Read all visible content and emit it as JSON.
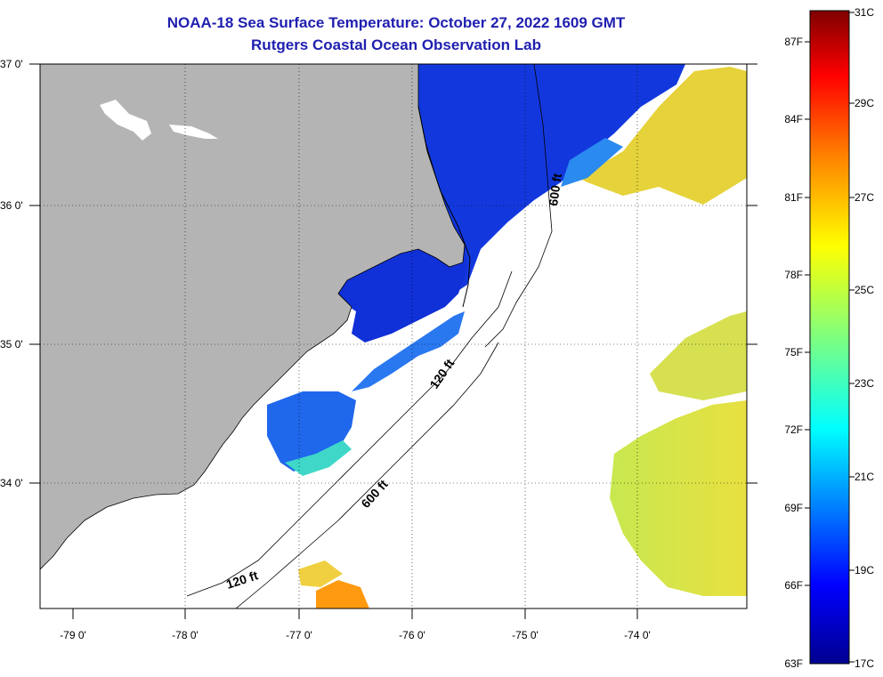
{
  "title": {
    "line1": "NOAA-18 Sea Surface Temperature:  October 27, 2022 1609 GMT",
    "line2": "Rutgers Coastal Ocean Observation Lab"
  },
  "axes": {
    "longitude_labels": [
      "-79 0'",
      "-78 0'",
      "-77 0'",
      "-76 0'",
      "-75 0'",
      "-74 0'"
    ],
    "latitude_labels": [
      "37 0'",
      "36 0'",
      "35 0'",
      "34 0'"
    ]
  },
  "contours": {
    "depth_labels": [
      "600 ft",
      "120 ft",
      "600 ft",
      "120 ft"
    ]
  },
  "colorbar": {
    "fahrenheit_labels": [
      "87F",
      "84F",
      "81F",
      "78F",
      "75F",
      "72F",
      "69F",
      "66F",
      "63F"
    ],
    "celsius_labels": [
      "31C",
      "29C",
      "27C",
      "25C",
      "23C",
      "21C",
      "19C",
      "17C"
    ],
    "colors": [
      "#7f0000",
      "#ff0000",
      "#ff7f00",
      "#ffff00",
      "#7fff7f",
      "#00ffff",
      "#007fff",
      "#0000ff",
      "#00008f"
    ]
  },
  "colors": {
    "land": "#b4b4b4",
    "title_text": "#1f1fb0",
    "cold_water": "#1030e0",
    "warm_water": "#e8e040"
  }
}
